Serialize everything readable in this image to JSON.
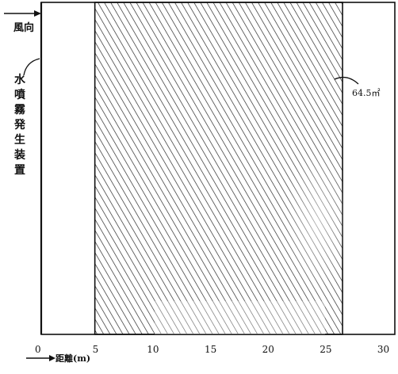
{
  "diagram": {
    "wind_label": "風向",
    "device_label": "水噴霧発生装置",
    "area_label": "64.5㎡",
    "distance_label": "距離(m)",
    "axis": {
      "ticks": [
        "0",
        "5",
        "10",
        "15",
        "20",
        "25",
        "30"
      ],
      "min": 0,
      "max": 30
    },
    "hatched_region": {
      "start": 5,
      "end": 26.5
    }
  }
}
